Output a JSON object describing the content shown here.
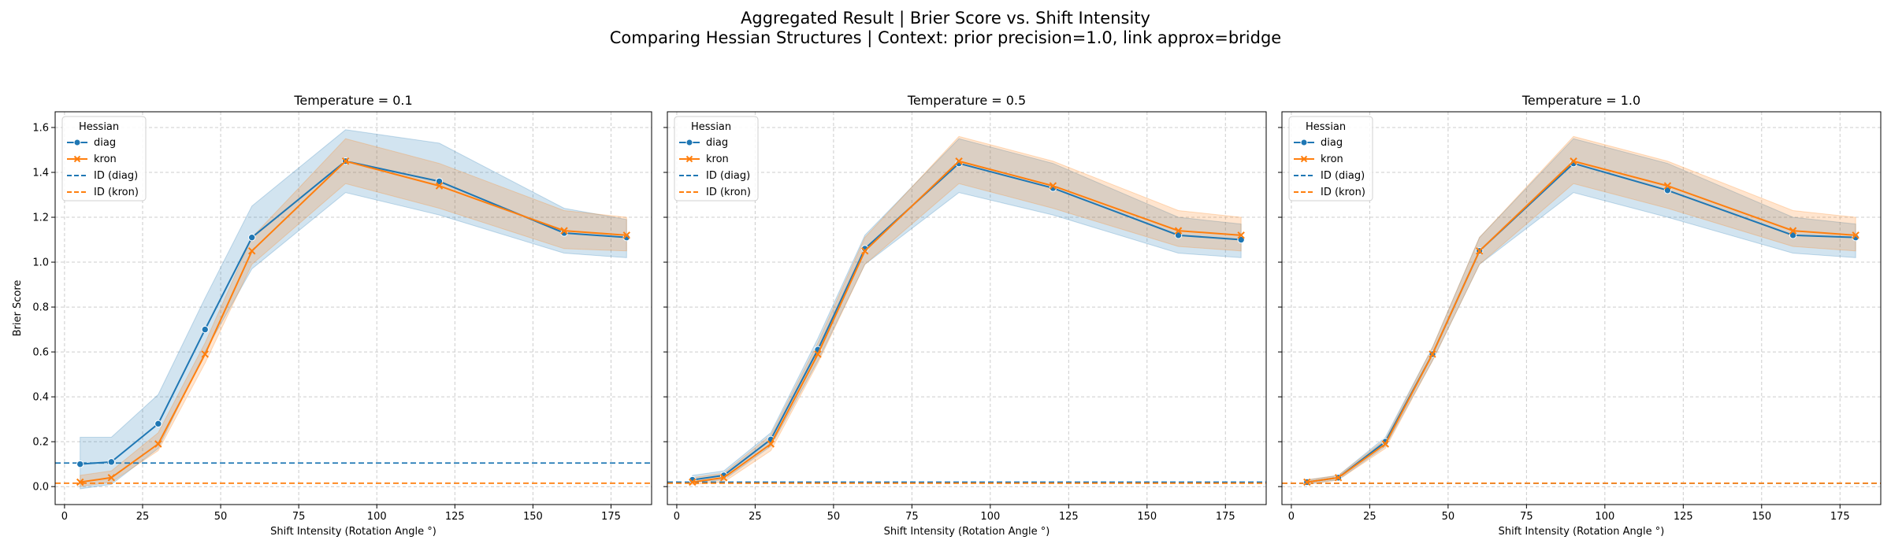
{
  "figure": {
    "title_line1": "Aggregated Result | Brier Score vs. Shift Intensity",
    "title_line2": "Comparing Hessian Structures | Context: prior precision=1.0, link approx=bridge"
  },
  "colors": {
    "diag": "#1f77b4",
    "kron": "#ff7f0e",
    "grid": "#cccccc",
    "axis": "#000000"
  },
  "chart_data": [
    {
      "type": "line",
      "title": "Temperature = 0.1",
      "xlabel": "Shift Intensity (Rotation Angle °)",
      "ylabel": "Brier Score",
      "xlim": [
        -3,
        188
      ],
      "ylim": [
        -0.08,
        1.67
      ],
      "xticks": [
        0,
        25,
        50,
        75,
        100,
        125,
        150,
        175
      ],
      "yticks": [
        0.0,
        0.2,
        0.4,
        0.6,
        0.8,
        1.0,
        1.2,
        1.4,
        1.6
      ],
      "grid": true,
      "legend": {
        "title": "Hessian",
        "placement": "upper-left",
        "entries": [
          "diag",
          "kron",
          "ID (diag)",
          "ID (kron)"
        ]
      },
      "x": [
        5,
        15,
        30,
        45,
        60,
        90,
        120,
        160,
        180
      ],
      "series": [
        {
          "name": "diag",
          "marker": "circle",
          "values": [
            0.1,
            0.11,
            0.28,
            0.7,
            1.11,
            1.45,
            1.36,
            1.13,
            1.11
          ],
          "lower": [
            -0.01,
            0.01,
            0.17,
            0.6,
            0.97,
            1.31,
            1.21,
            1.04,
            1.02
          ],
          "upper": [
            0.22,
            0.22,
            0.41,
            0.84,
            1.25,
            1.59,
            1.53,
            1.24,
            1.19
          ]
        },
        {
          "name": "kron",
          "marker": "x",
          "values": [
            0.02,
            0.04,
            0.19,
            0.59,
            1.05,
            1.45,
            1.34,
            1.14,
            1.12
          ],
          "lower": [
            0.0,
            0.02,
            0.16,
            0.55,
            0.99,
            1.35,
            1.24,
            1.06,
            1.05
          ],
          "upper": [
            0.05,
            0.07,
            0.24,
            0.64,
            1.11,
            1.55,
            1.44,
            1.23,
            1.2
          ]
        }
      ],
      "reference_lines": [
        {
          "name": "ID (diag)",
          "y": 0.105,
          "color": "#1f77b4",
          "style": "dashed"
        },
        {
          "name": "ID (kron)",
          "y": 0.015,
          "color": "#ff7f0e",
          "style": "dashed"
        }
      ]
    },
    {
      "type": "line",
      "title": "Temperature = 0.5",
      "xlabel": "Shift Intensity (Rotation Angle °)",
      "ylabel": "",
      "xlim": [
        -3,
        188
      ],
      "ylim": [
        -0.08,
        1.67
      ],
      "xticks": [
        0,
        25,
        50,
        75,
        100,
        125,
        150,
        175
      ],
      "yticks": [
        0.0,
        0.2,
        0.4,
        0.6,
        0.8,
        1.0,
        1.2,
        1.4,
        1.6
      ],
      "grid": true,
      "legend": {
        "title": "Hessian",
        "placement": "upper-left",
        "entries": [
          "diag",
          "kron",
          "ID (diag)",
          "ID (kron)"
        ]
      },
      "x": [
        5,
        15,
        30,
        45,
        60,
        90,
        120,
        160,
        180
      ],
      "series": [
        {
          "name": "diag",
          "marker": "circle",
          "values": [
            0.03,
            0.05,
            0.21,
            0.61,
            1.06,
            1.44,
            1.33,
            1.12,
            1.1
          ],
          "lower": [
            0.02,
            0.03,
            0.18,
            0.56,
            0.99,
            1.31,
            1.21,
            1.04,
            1.02
          ],
          "upper": [
            0.05,
            0.07,
            0.24,
            0.66,
            1.12,
            1.55,
            1.44,
            1.2,
            1.17
          ]
        },
        {
          "name": "kron",
          "marker": "x",
          "values": [
            0.02,
            0.04,
            0.19,
            0.59,
            1.05,
            1.45,
            1.34,
            1.14,
            1.12
          ],
          "lower": [
            0.01,
            0.02,
            0.16,
            0.55,
            0.99,
            1.35,
            1.24,
            1.07,
            1.05
          ],
          "upper": [
            0.04,
            0.06,
            0.23,
            0.64,
            1.11,
            1.56,
            1.45,
            1.23,
            1.2
          ]
        }
      ],
      "reference_lines": [
        {
          "name": "ID (diag)",
          "y": 0.02,
          "color": "#1f77b4",
          "style": "dashed"
        },
        {
          "name": "ID (kron)",
          "y": 0.015,
          "color": "#ff7f0e",
          "style": "dashed"
        }
      ]
    },
    {
      "type": "line",
      "title": "Temperature = 1.0",
      "xlabel": "Shift Intensity (Rotation Angle °)",
      "ylabel": "",
      "xlim": [
        -3,
        188
      ],
      "ylim": [
        -0.08,
        1.67
      ],
      "xticks": [
        0,
        25,
        50,
        75,
        100,
        125,
        150,
        175
      ],
      "yticks": [
        0.0,
        0.2,
        0.4,
        0.6,
        0.8,
        1.0,
        1.2,
        1.4,
        1.6
      ],
      "grid": true,
      "legend": {
        "title": "Hessian",
        "placement": "upper-left",
        "entries": [
          "diag",
          "kron",
          "ID (diag)",
          "ID (kron)"
        ]
      },
      "x": [
        5,
        15,
        30,
        45,
        60,
        90,
        120,
        160,
        180
      ],
      "series": [
        {
          "name": "diag",
          "marker": "circle",
          "values": [
            0.02,
            0.04,
            0.2,
            0.59,
            1.05,
            1.44,
            1.32,
            1.12,
            1.11
          ],
          "lower": [
            0.01,
            0.03,
            0.18,
            0.56,
            0.99,
            1.31,
            1.2,
            1.04,
            1.02
          ],
          "upper": [
            0.03,
            0.05,
            0.22,
            0.62,
            1.11,
            1.55,
            1.44,
            1.2,
            1.17
          ]
        },
        {
          "name": "kron",
          "marker": "x",
          "values": [
            0.02,
            0.04,
            0.19,
            0.59,
            1.05,
            1.45,
            1.34,
            1.14,
            1.12
          ],
          "lower": [
            0.01,
            0.03,
            0.17,
            0.56,
            0.99,
            1.35,
            1.24,
            1.07,
            1.05
          ],
          "upper": [
            0.03,
            0.05,
            0.21,
            0.62,
            1.11,
            1.56,
            1.45,
            1.23,
            1.2
          ]
        }
      ],
      "reference_lines": [
        {
          "name": "ID (diag)",
          "y": 0.015,
          "color": "#1f77b4",
          "style": "dashed"
        },
        {
          "name": "ID (kron)",
          "y": 0.015,
          "color": "#ff7f0e",
          "style": "dashed"
        }
      ]
    }
  ]
}
